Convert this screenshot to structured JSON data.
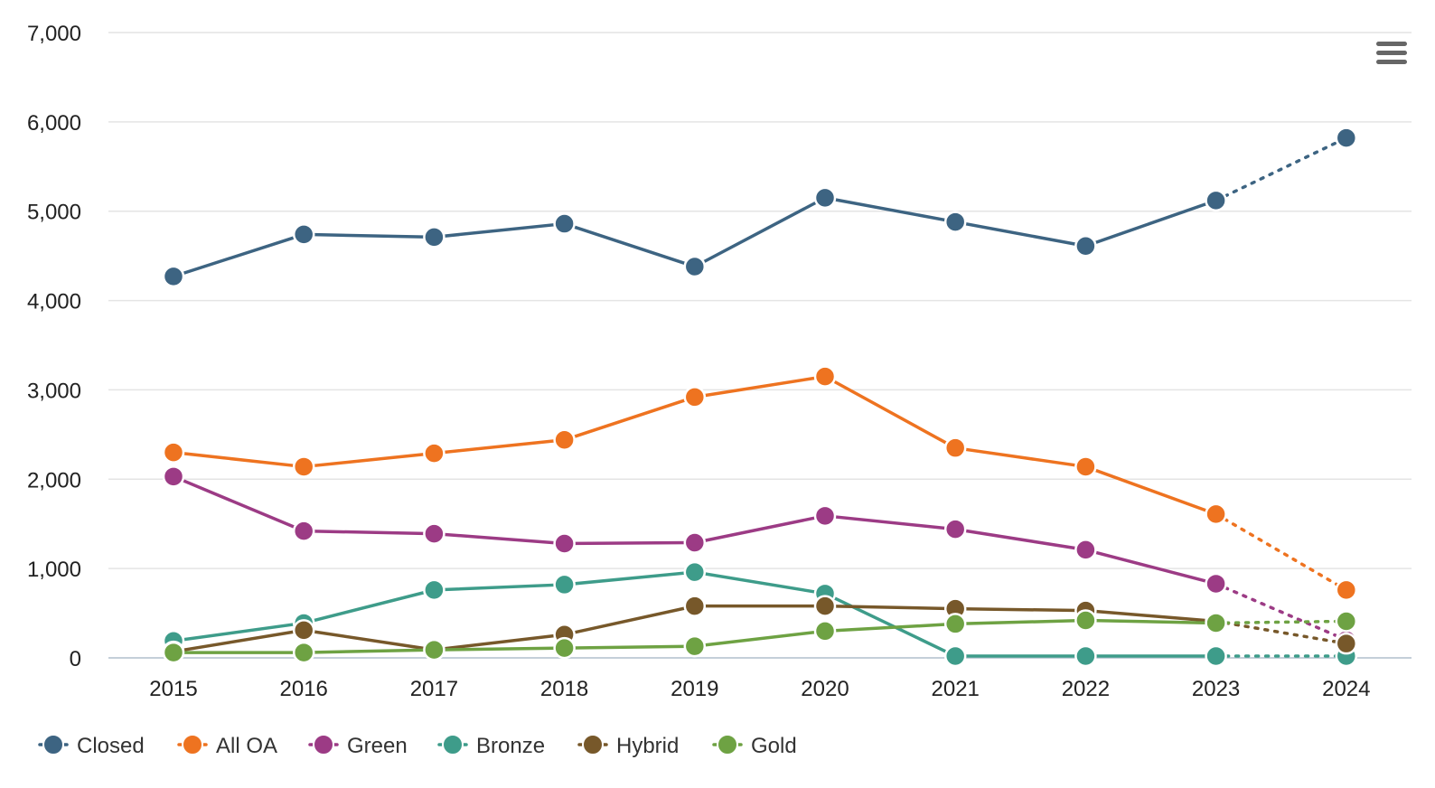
{
  "chart_data": {
    "type": "line",
    "title": "",
    "xlabel": "",
    "ylabel": "",
    "x": [
      "2015",
      "2016",
      "2017",
      "2018",
      "2019",
      "2020",
      "2021",
      "2022",
      "2023",
      "2024"
    ],
    "ylim": [
      0,
      7000
    ],
    "yticks": [
      0,
      1000,
      2000,
      3000,
      4000,
      5000,
      6000,
      7000
    ],
    "ytick_labels": [
      "0",
      "1,000",
      "2,000",
      "3,000",
      "4,000",
      "5,000",
      "6,000",
      "7,000"
    ],
    "grid": true,
    "legend_position": "bottom-left",
    "dotted_last_segment": true,
    "series": [
      {
        "name": "Closed",
        "color": "#3d6482",
        "values": [
          4270,
          4740,
          4710,
          4860,
          4380,
          5150,
          4880,
          4610,
          5120,
          5820
        ]
      },
      {
        "name": "All OA",
        "color": "#ee7320",
        "values": [
          2300,
          2140,
          2290,
          2440,
          2920,
          3150,
          2350,
          2140,
          1610,
          760
        ]
      },
      {
        "name": "Green",
        "color": "#9c3b85",
        "values": [
          2030,
          1420,
          1390,
          1280,
          1290,
          1590,
          1440,
          1210,
          830,
          200
        ]
      },
      {
        "name": "Bronze",
        "color": "#3e9c8a",
        "values": [
          190,
          390,
          760,
          820,
          960,
          720,
          20,
          20,
          20,
          20
        ]
      },
      {
        "name": "Hybrid",
        "color": "#77582a",
        "values": [
          70,
          310,
          90,
          260,
          580,
          580,
          550,
          530,
          410,
          160
        ]
      },
      {
        "name": "Gold",
        "color": "#6ea243",
        "values": [
          60,
          60,
          90,
          110,
          130,
          300,
          380,
          420,
          390,
          410
        ]
      }
    ]
  },
  "export_menu": {
    "icon": "hamburger-menu-icon"
  }
}
